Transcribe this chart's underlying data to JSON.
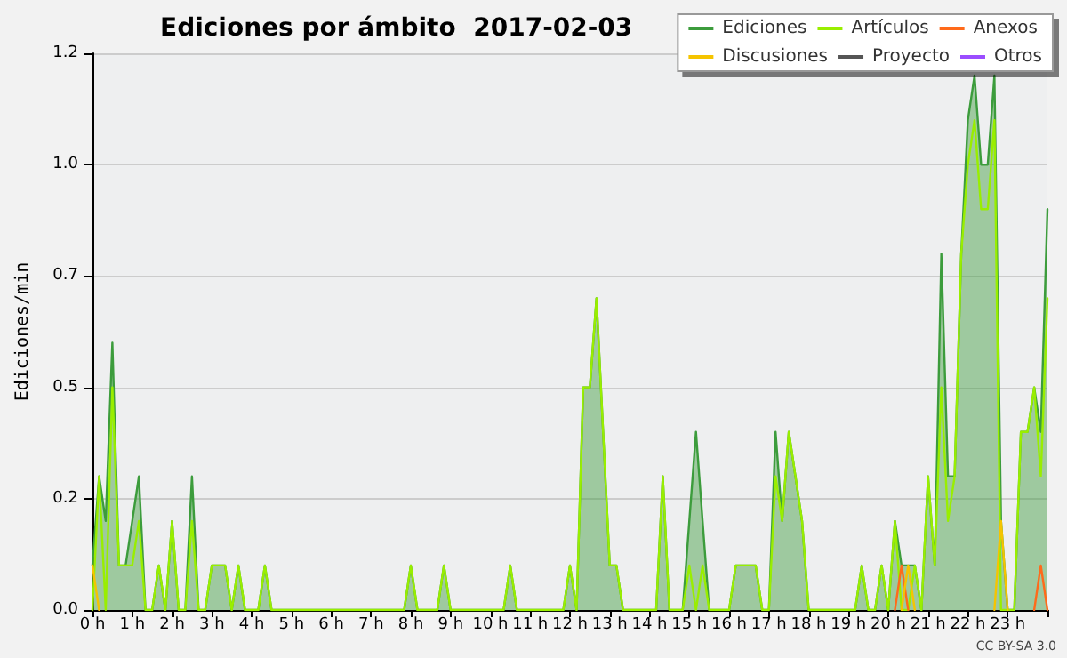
{
  "chart_data": {
    "type": "line",
    "title": "Ediciones por ámbito  2017-02-03",
    "ylabel": "Ediciones/min",
    "annotations": [
      "CC BY-SA 3.0"
    ],
    "x": [
      0,
      0.167,
      0.333,
      0.5,
      0.667,
      0.833,
      1,
      1.167,
      1.333,
      1.5,
      1.667,
      1.833,
      2,
      2.167,
      2.333,
      2.5,
      2.667,
      2.833,
      3,
      3.167,
      3.333,
      3.5,
      3.667,
      3.833,
      4,
      4.167,
      4.333,
      4.5,
      4.667,
      4.833,
      5,
      5.167,
      5.333,
      5.5,
      5.667,
      5.833,
      6,
      6.167,
      6.333,
      6.5,
      6.667,
      6.833,
      7,
      7.167,
      7.333,
      7.5,
      7.667,
      7.833,
      8,
      8.167,
      8.333,
      8.5,
      8.667,
      8.833,
      9,
      9.167,
      9.333,
      9.5,
      9.667,
      9.833,
      10,
      10.167,
      10.333,
      10.5,
      10.667,
      10.833,
      11,
      11.167,
      11.333,
      11.5,
      11.667,
      11.833,
      12,
      12.167,
      12.333,
      12.5,
      12.667,
      12.833,
      13,
      13.167,
      13.333,
      13.5,
      13.667,
      13.833,
      14,
      14.167,
      14.333,
      14.5,
      14.667,
      14.833,
      15,
      15.167,
      15.333,
      15.5,
      15.667,
      15.833,
      16,
      16.167,
      16.333,
      16.5,
      16.667,
      16.833,
      17,
      17.167,
      17.333,
      17.5,
      17.667,
      17.833,
      18,
      18.167,
      18.333,
      18.5,
      18.667,
      18.833,
      19,
      19.167,
      19.333,
      19.5,
      19.667,
      19.833,
      20,
      20.167,
      20.333,
      20.5,
      20.667,
      20.833,
      21,
      21.167,
      21.333,
      21.5,
      21.667,
      21.833,
      22,
      22.167,
      22.333,
      22.5,
      22.667,
      22.833,
      23,
      23.167,
      23.333,
      23.5,
      23.667,
      23.833,
      24
    ],
    "series": [
      {
        "name": "Ediciones",
        "type": "area",
        "color": "#3c9c3c",
        "values": [
          0.1,
          0.3,
          0.2,
          0.6,
          0.1,
          0.1,
          0.2,
          0.3,
          0,
          0,
          0.1,
          0,
          0.2,
          0,
          0,
          0.3,
          0,
          0,
          0.1,
          0.1,
          0.1,
          0,
          0.1,
          0,
          0,
          0,
          0.1,
          0,
          0,
          0,
          0,
          0,
          0,
          0,
          0,
          0,
          0,
          0,
          0,
          0,
          0,
          0,
          0,
          0,
          0,
          0,
          0,
          0,
          0.1,
          0,
          0,
          0,
          0,
          0.1,
          0,
          0,
          0,
          0,
          0,
          0,
          0,
          0,
          0,
          0.1,
          0,
          0,
          0,
          0,
          0,
          0,
          0,
          0,
          0.1,
          0,
          0.5,
          0.5,
          0.7,
          0.4,
          0.1,
          0.1,
          0,
          0,
          0,
          0,
          0,
          0,
          0.3,
          0,
          0,
          0,
          0.2,
          0.4,
          0.2,
          0,
          0,
          0,
          0,
          0.1,
          0.1,
          0.1,
          0.1,
          0,
          0,
          0.4,
          0.2,
          0.4,
          0.3,
          0.2,
          0,
          0,
          0,
          0,
          0,
          0,
          0,
          0,
          0.1,
          0,
          0,
          0.1,
          0,
          0.2,
          0.1,
          0.1,
          0.1,
          0,
          0.3,
          0.1,
          0.8,
          0.3,
          0.3,
          0.8,
          1.1,
          1.2,
          1.0,
          1.0,
          1.2,
          0.2,
          0,
          0,
          0.4,
          0.4,
          0.5,
          0.4,
          0.9
        ]
      },
      {
        "name": "Artículos",
        "color": "#99ee00",
        "values": [
          0,
          0.3,
          0,
          0.5,
          0.1,
          0.1,
          0.1,
          0.2,
          0,
          0,
          0.1,
          0,
          0.2,
          0,
          0,
          0.2,
          0,
          0,
          0.1,
          0.1,
          0.1,
          0,
          0.1,
          0,
          0,
          0,
          0.1,
          0,
          0,
          0,
          0,
          0,
          0,
          0,
          0,
          0,
          0,
          0,
          0,
          0,
          0,
          0,
          0,
          0,
          0,
          0,
          0,
          0,
          0.1,
          0,
          0,
          0,
          0,
          0.1,
          0,
          0,
          0,
          0,
          0,
          0,
          0,
          0,
          0,
          0.1,
          0,
          0,
          0,
          0,
          0,
          0,
          0,
          0,
          0.1,
          0,
          0.5,
          0.5,
          0.7,
          0.4,
          0.1,
          0.1,
          0,
          0,
          0,
          0,
          0,
          0,
          0.3,
          0,
          0,
          0,
          0.1,
          0,
          0.1,
          0,
          0,
          0,
          0,
          0.1,
          0.1,
          0.1,
          0.1,
          0,
          0,
          0.3,
          0.2,
          0.4,
          0.3,
          0.2,
          0,
          0,
          0,
          0,
          0,
          0,
          0,
          0,
          0.1,
          0,
          0,
          0.1,
          0,
          0.2,
          0,
          0,
          0.1,
          0,
          0.3,
          0.1,
          0.5,
          0.2,
          0.3,
          0.8,
          1.0,
          1.1,
          0.9,
          0.9,
          1.1,
          0,
          0,
          0,
          0.4,
          0.4,
          0.5,
          0.3,
          0.7
        ]
      },
      {
        "name": "Anexos",
        "color": "#ff6a1a",
        "values": [
          null,
          null,
          null,
          null,
          null,
          null,
          null,
          null,
          null,
          null,
          null,
          null,
          null,
          null,
          null,
          null,
          null,
          null,
          null,
          null,
          null,
          null,
          null,
          null,
          null,
          null,
          null,
          null,
          null,
          null,
          null,
          null,
          null,
          null,
          null,
          null,
          null,
          null,
          null,
          null,
          null,
          null,
          null,
          null,
          null,
          null,
          null,
          null,
          null,
          null,
          null,
          null,
          null,
          null,
          null,
          null,
          null,
          null,
          null,
          null,
          null,
          null,
          null,
          null,
          null,
          null,
          null,
          null,
          null,
          null,
          null,
          null,
          null,
          null,
          null,
          null,
          null,
          null,
          null,
          null,
          null,
          null,
          null,
          null,
          null,
          null,
          null,
          null,
          null,
          null,
          null,
          null,
          null,
          null,
          null,
          null,
          null,
          null,
          null,
          null,
          null,
          null,
          null,
          null,
          null,
          null,
          null,
          null,
          null,
          null,
          null,
          null,
          null,
          null,
          null,
          null,
          null,
          null,
          null,
          null,
          null,
          0,
          0.1,
          0,
          null,
          null,
          null,
          null,
          null,
          null,
          null,
          null,
          null,
          null,
          null,
          null,
          null,
          null,
          null,
          null,
          null,
          null,
          0,
          0.1,
          0
        ]
      },
      {
        "name": "Discusiones",
        "color": "#f5c400",
        "values": [
          0.1,
          0,
          null,
          null,
          null,
          null,
          null,
          null,
          null,
          null,
          null,
          null,
          null,
          null,
          null,
          null,
          null,
          null,
          null,
          null,
          null,
          null,
          null,
          null,
          null,
          null,
          null,
          null,
          null,
          null,
          null,
          null,
          null,
          null,
          null,
          null,
          null,
          null,
          null,
          null,
          null,
          null,
          null,
          null,
          null,
          null,
          null,
          null,
          null,
          null,
          null,
          null,
          null,
          null,
          null,
          null,
          null,
          null,
          null,
          null,
          null,
          null,
          null,
          null,
          null,
          null,
          null,
          null,
          null,
          null,
          null,
          null,
          null,
          null,
          null,
          null,
          null,
          null,
          null,
          null,
          null,
          null,
          null,
          null,
          null,
          null,
          null,
          null,
          null,
          null,
          null,
          null,
          null,
          null,
          null,
          null,
          null,
          null,
          null,
          null,
          null,
          null,
          null,
          null,
          null,
          null,
          null,
          null,
          null,
          null,
          null,
          null,
          null,
          null,
          null,
          null,
          null,
          null,
          null,
          null,
          null,
          null,
          0,
          0.1,
          0,
          null,
          null,
          null,
          null,
          null,
          null,
          null,
          null,
          null,
          null,
          null,
          0,
          0.2,
          0,
          null,
          null,
          null,
          null,
          null,
          null
        ]
      },
      {
        "name": "Proyecto",
        "color": "#555555",
        "values": [
          null,
          null,
          null,
          null,
          null,
          null,
          null,
          null,
          null,
          null,
          null,
          null,
          null,
          null,
          null,
          null,
          null,
          null,
          null,
          null,
          null,
          null,
          null,
          null,
          null,
          null,
          null,
          null,
          null,
          null,
          null,
          null,
          null,
          null,
          null,
          null,
          null,
          null,
          null,
          null,
          null,
          null,
          null,
          null,
          null,
          null,
          null,
          null,
          null,
          null,
          null,
          null,
          null,
          null,
          null,
          null,
          null,
          null,
          null,
          null,
          null,
          null,
          null,
          null,
          null,
          null,
          null,
          null,
          null,
          null,
          null,
          null,
          null,
          null,
          null,
          null,
          null,
          null,
          null,
          null,
          null,
          null,
          null,
          null,
          null,
          null,
          null,
          null,
          null,
          null,
          null,
          null,
          null,
          null,
          null,
          null,
          null,
          null,
          null,
          null,
          null,
          null,
          null,
          null,
          null,
          null,
          null,
          null,
          null,
          null,
          null,
          null,
          null,
          null,
          null,
          null,
          null,
          null,
          null,
          null,
          null,
          null,
          null,
          null,
          null,
          null,
          null,
          null,
          null,
          null,
          null,
          null,
          null,
          null,
          null,
          null,
          null,
          null,
          null,
          null,
          null,
          null,
          null,
          null,
          null
        ]
      },
      {
        "name": "Otros",
        "color": "#9b4dff",
        "values": [
          null,
          null,
          null,
          null,
          null,
          null,
          null,
          null,
          null,
          null,
          null,
          null,
          null,
          null,
          null,
          null,
          null,
          null,
          null,
          null,
          null,
          null,
          null,
          null,
          null,
          null,
          null,
          null,
          null,
          null,
          null,
          null,
          null,
          null,
          null,
          null,
          null,
          null,
          null,
          null,
          null,
          null,
          null,
          null,
          null,
          null,
          null,
          null,
          null,
          null,
          null,
          null,
          null,
          null,
          null,
          null,
          null,
          null,
          null,
          null,
          null,
          null,
          null,
          null,
          null,
          null,
          null,
          null,
          null,
          null,
          null,
          null,
          null,
          null,
          null,
          null,
          null,
          null,
          null,
          null,
          null,
          null,
          null,
          null,
          null,
          null,
          null,
          null,
          null,
          null,
          null,
          null,
          null,
          null,
          null,
          null,
          null,
          null,
          null,
          null,
          null,
          null,
          null,
          null,
          null,
          null,
          null,
          null,
          null,
          null,
          null,
          null,
          null,
          null,
          null,
          null,
          null,
          null,
          null,
          null,
          null,
          null,
          null,
          null,
          null,
          null,
          null,
          null,
          null,
          null,
          null,
          null,
          null,
          null,
          null,
          null,
          null,
          null,
          null,
          null,
          null,
          null,
          null,
          null,
          null
        ]
      }
    ],
    "xlim": [
      0,
      24
    ],
    "xticks": [
      {
        "value": 0,
        "label": "0 h"
      },
      {
        "value": 1,
        "label": "1 h"
      },
      {
        "value": 2,
        "label": "2 h"
      },
      {
        "value": 3,
        "label": "3 h"
      },
      {
        "value": 4,
        "label": "4 h"
      },
      {
        "value": 5,
        "label": "5 h"
      },
      {
        "value": 6,
        "label": "6 h"
      },
      {
        "value": 7,
        "label": "7 h"
      },
      {
        "value": 8,
        "label": "8 h"
      },
      {
        "value": 9,
        "label": "9 h"
      },
      {
        "value": 10,
        "label": "10 h"
      },
      {
        "value": 11,
        "label": "11 h"
      },
      {
        "value": 12,
        "label": "12 h"
      },
      {
        "value": 13,
        "label": "13 h"
      },
      {
        "value": 14,
        "label": "14 h"
      },
      {
        "value": 15,
        "label": "15 h"
      },
      {
        "value": 16,
        "label": "16 h"
      },
      {
        "value": 17,
        "label": "17 h"
      },
      {
        "value": 18,
        "label": "18 h"
      },
      {
        "value": 19,
        "label": "19 h"
      },
      {
        "value": 20,
        "label": "20 h"
      },
      {
        "value": 21,
        "label": "21 h"
      },
      {
        "value": 22,
        "label": "22 h"
      },
      {
        "value": 23,
        "label": "23 h"
      },
      {
        "value": 24,
        "label": null
      }
    ],
    "ylim": [
      0,
      1.25
    ],
    "yticks": [
      {
        "value": 0,
        "label": "0.0"
      },
      {
        "value": 0.25,
        "label": "0.2"
      },
      {
        "value": 0.5,
        "label": "0.5"
      },
      {
        "value": 0.75,
        "label": "0.7"
      },
      {
        "value": 1,
        "label": "1.0"
      },
      {
        "value": 1.25,
        "label": "1.2"
      }
    ],
    "grid": "y",
    "legend": "top right",
    "marker": "none",
    "line_style": "solid"
  }
}
